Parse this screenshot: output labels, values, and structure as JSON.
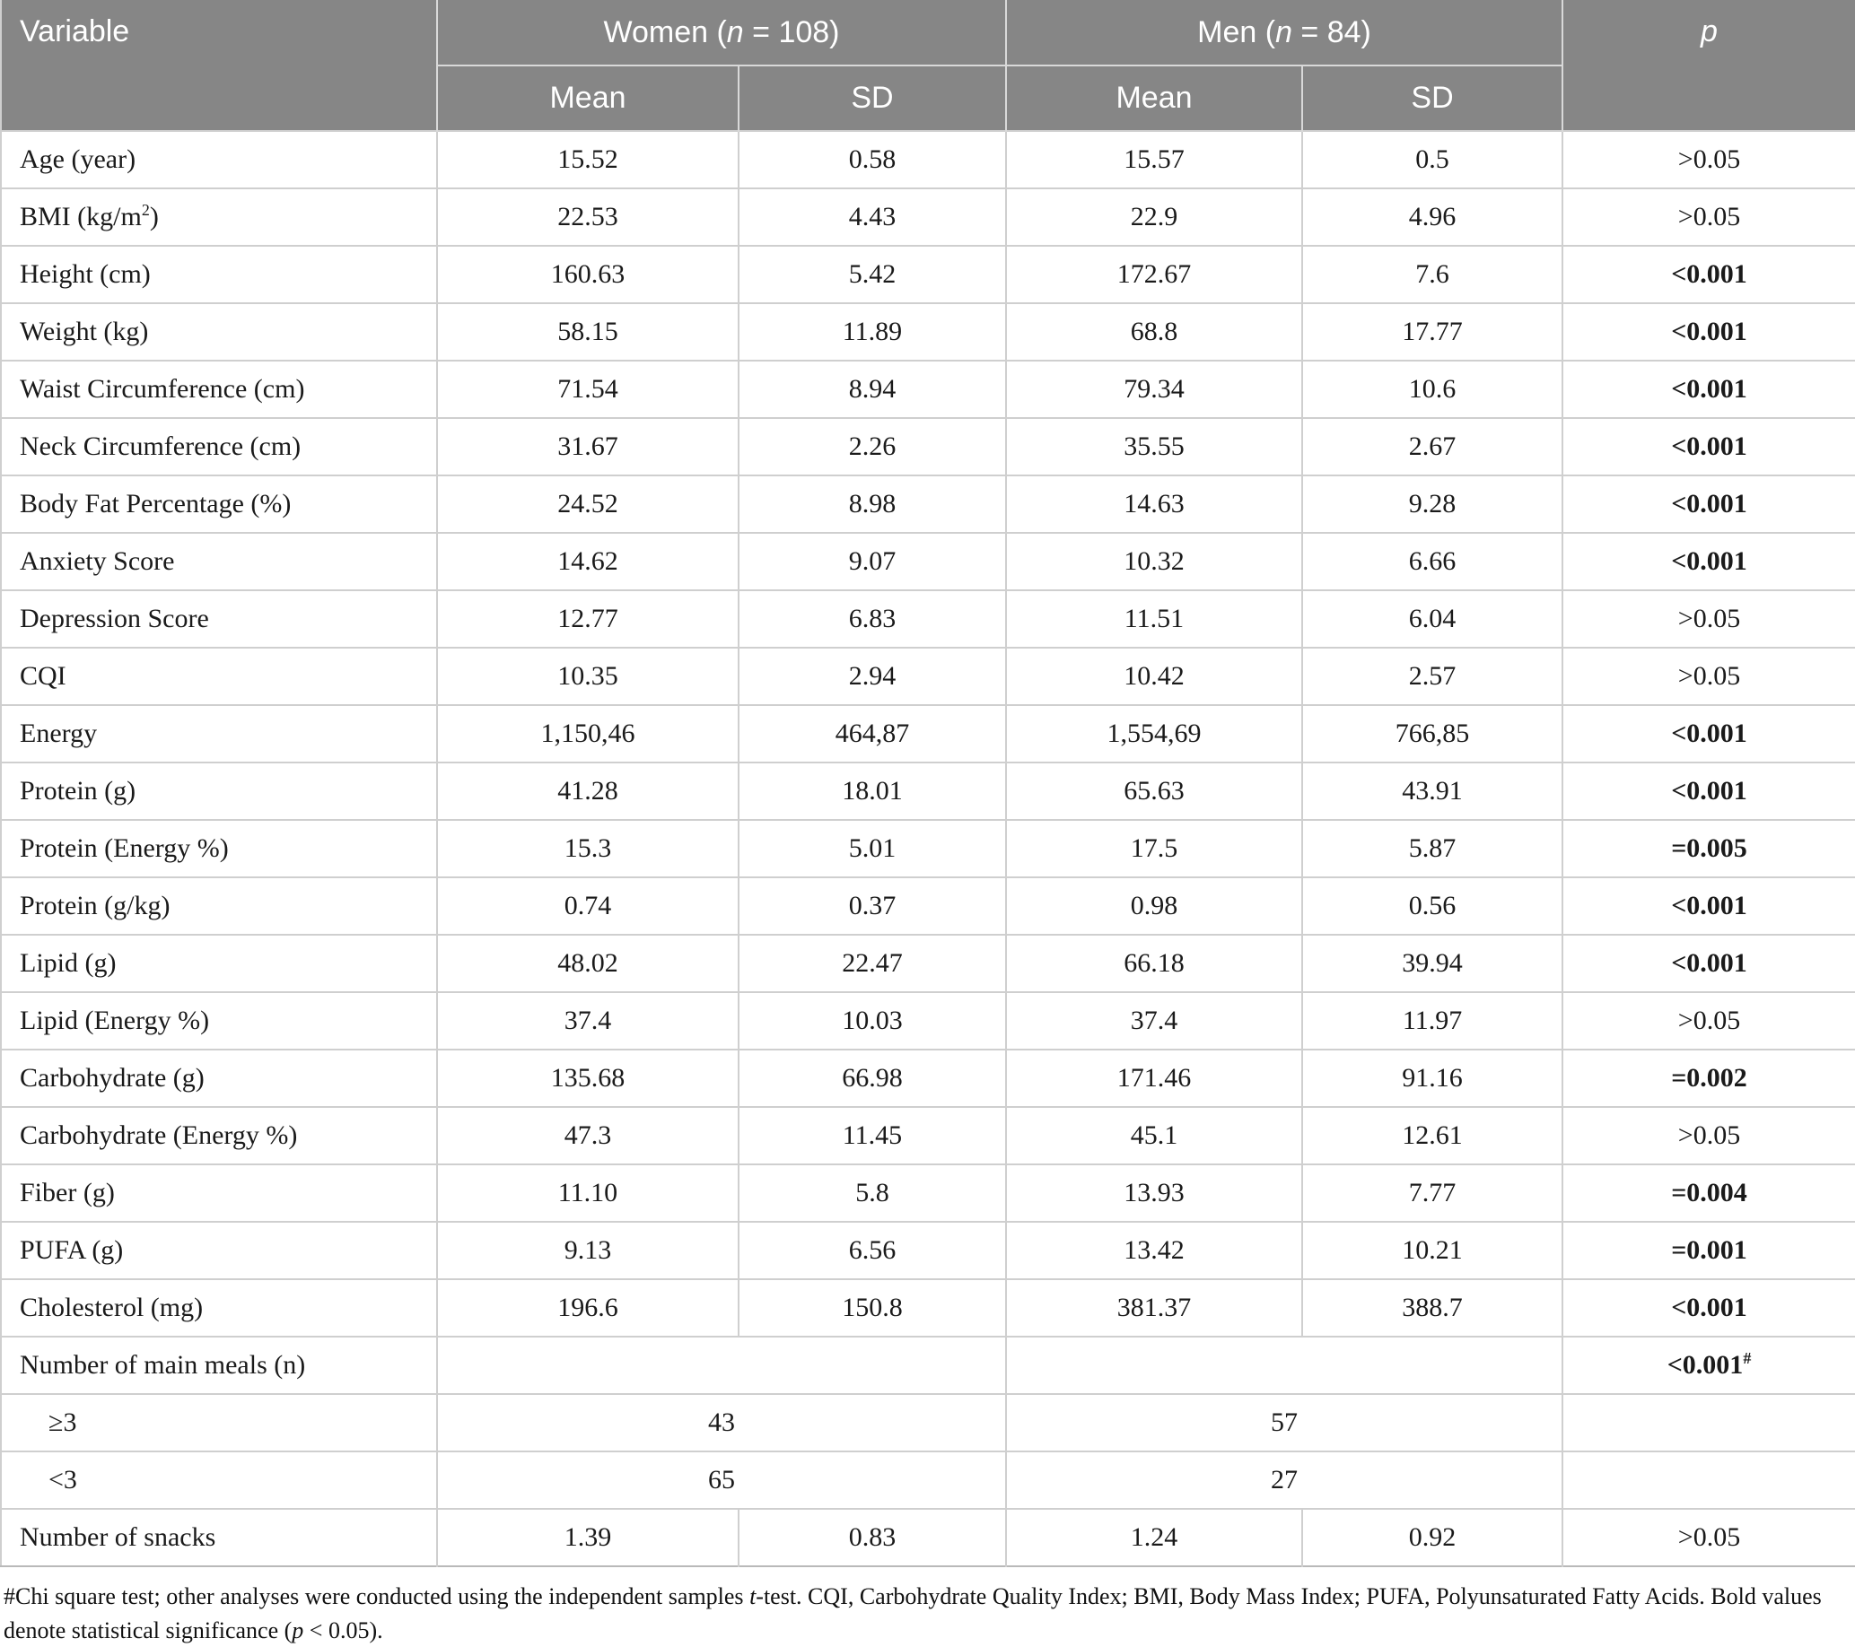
{
  "table": {
    "header": {
      "variable_label": "Variable",
      "women": {
        "prefix": "Women (",
        "n": "n",
        "rest": " = 108)"
      },
      "men": {
        "prefix": "Men (",
        "n": "n",
        "rest": " = 84)"
      },
      "mean_label": "Mean",
      "sd_label": "SD",
      "p_label": "p"
    },
    "columns": [
      "Variable",
      "Women Mean",
      "Women SD",
      "Men Mean",
      "Men SD",
      "p"
    ],
    "rows": [
      {
        "label": "Age (year)",
        "cells": [
          "15.52",
          "0.58",
          "15.57",
          "0.5"
        ],
        "p": ">0.05",
        "p_bold": false
      },
      {
        "label": "BMI (kg/m",
        "label_sup": "2",
        "label_rest": ")",
        "cells": [
          "22.53",
          "4.43",
          "22.9",
          "4.96"
        ],
        "p": ">0.05",
        "p_bold": false
      },
      {
        "label": "Height (cm)",
        "cells": [
          "160.63",
          "5.42",
          "172.67",
          "7.6"
        ],
        "p": "<0.001",
        "p_bold": true
      },
      {
        "label": "Weight (kg)",
        "cells": [
          "58.15",
          "11.89",
          "68.8",
          "17.77"
        ],
        "p": "<0.001",
        "p_bold": true
      },
      {
        "label": "Waist Circumference (cm)",
        "cells": [
          "71.54",
          "8.94",
          "79.34",
          "10.6"
        ],
        "p": "<0.001",
        "p_bold": true
      },
      {
        "label": "Neck Circumference (cm)",
        "cells": [
          "31.67",
          "2.26",
          "35.55",
          "2.67"
        ],
        "p": "<0.001",
        "p_bold": true
      },
      {
        "label": "Body Fat Percentage (%)",
        "cells": [
          "24.52",
          "8.98",
          "14.63",
          "9.28"
        ],
        "p": "<0.001",
        "p_bold": true
      },
      {
        "label": "Anxiety Score",
        "cells": [
          "14.62",
          "9.07",
          "10.32",
          "6.66"
        ],
        "p": "<0.001",
        "p_bold": true
      },
      {
        "label": "Depression Score",
        "cells": [
          "12.77",
          "6.83",
          "11.51",
          "6.04"
        ],
        "p": ">0.05",
        "p_bold": false
      },
      {
        "label": "CQI",
        "cells": [
          "10.35",
          "2.94",
          "10.42",
          "2.57"
        ],
        "p": ">0.05",
        "p_bold": false
      },
      {
        "label": "Energy",
        "cells": [
          "1,150,46",
          "464,87",
          "1,554,69",
          "766,85"
        ],
        "p": "<0.001",
        "p_bold": true
      },
      {
        "label": "Protein (g)",
        "cells": [
          "41.28",
          "18.01",
          "65.63",
          "43.91"
        ],
        "p": "<0.001",
        "p_bold": true
      },
      {
        "label": "Protein (Energy %)",
        "cells": [
          "15.3",
          "5.01",
          "17.5",
          "5.87"
        ],
        "p": "=0.005",
        "p_bold": true
      },
      {
        "label": "Protein (g/kg)",
        "cells": [
          "0.74",
          "0.37",
          "0.98",
          "0.56"
        ],
        "p": "<0.001",
        "p_bold": true
      },
      {
        "label": "Lipid (g)",
        "cells": [
          "48.02",
          "22.47",
          "66.18",
          "39.94"
        ],
        "p": "<0.001",
        "p_bold": true
      },
      {
        "label": "Lipid (Energy %)",
        "cells": [
          "37.4",
          "10.03",
          "37.4",
          "11.97"
        ],
        "p": ">0.05",
        "p_bold": false
      },
      {
        "label": "Carbohydrate (g)",
        "cells": [
          "135.68",
          "66.98",
          "171.46",
          "91.16"
        ],
        "p": "=0.002",
        "p_bold": true
      },
      {
        "label": "Carbohydrate (Energy %)",
        "cells": [
          "47.3",
          "11.45",
          "45.1",
          "12.61"
        ],
        "p": ">0.05",
        "p_bold": false
      },
      {
        "label": "Fiber (g)",
        "cells": [
          "11.10",
          "5.8",
          "13.93",
          "7.77"
        ],
        "p": "=0.004",
        "p_bold": true
      },
      {
        "label": "PUFA (g)",
        "cells": [
          "9.13",
          "6.56",
          "13.42",
          "10.21"
        ],
        "p": "=0.001",
        "p_bold": true
      },
      {
        "label": "Cholesterol (mg)",
        "cells": [
          "196.6",
          "150.8",
          "381.37",
          "388.7"
        ],
        "p": "<0.001",
        "p_bold": true
      },
      {
        "label": "Number of main meals (n)",
        "merged": true,
        "women": "",
        "men": "",
        "p": "<0.001",
        "p_bold": true,
        "p_sup": "#"
      },
      {
        "label": "≥3",
        "indent": true,
        "merged": true,
        "women": "43",
        "men": "57",
        "p": "",
        "p_bold": false
      },
      {
        "label": "<3",
        "indent": true,
        "merged": true,
        "women": "65",
        "men": "27",
        "p": "",
        "p_bold": false
      },
      {
        "label": "Number of snacks",
        "cells": [
          "1.39",
          "0.83",
          "1.24",
          "0.92"
        ],
        "p": ">0.05",
        "p_bold": false
      }
    ],
    "footnote_segments": [
      {
        "text": "#Chi square test; other analyses were conducted using the independent samples ",
        "italic": false
      },
      {
        "text": "t",
        "italic": true
      },
      {
        "text": "-test. CQI, Carbohydrate Quality Index; BMI, Body Mass Index; PUFA, Polyunsaturated Fatty Acids. Bold values denote statistical significance (",
        "italic": false
      },
      {
        "text": "p",
        "italic": true
      },
      {
        "text": " < 0.05).",
        "italic": false
      }
    ],
    "colors": {
      "header_bg": "#868686",
      "header_text": "#ffffff",
      "row_border": "#cfcfcf",
      "body_text": "#1a1a1a"
    }
  }
}
